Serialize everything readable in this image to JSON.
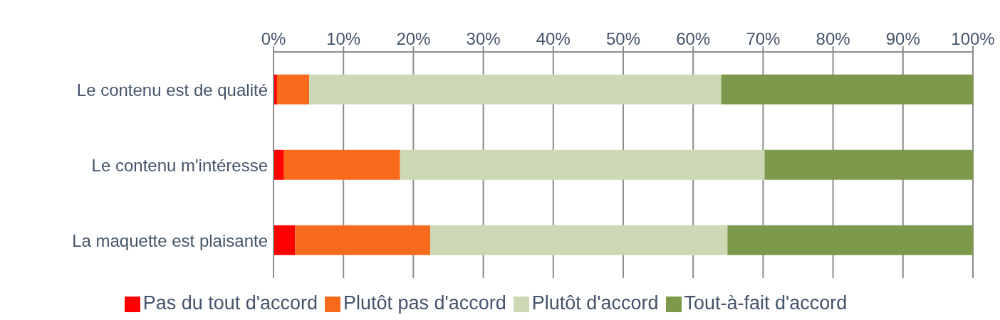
{
  "chart_data": {
    "type": "bar",
    "orientation": "horizontal",
    "stacked": true,
    "categories": [
      "Le contenu est de qualité",
      "Le contenu m'intéresse",
      "La maquette est plaisante"
    ],
    "series": [
      {
        "name": "Pas du tout d'accord",
        "color": "#ff0000",
        "values": [
          0.5,
          1.5,
          3.1
        ]
      },
      {
        "name": "Plutôt pas d'accord",
        "color": "#f96b1c",
        "values": [
          4.6,
          16.6,
          19.3
        ]
      },
      {
        "name": "Plutôt d'accord",
        "color": "#cdd9b4",
        "values": [
          58.9,
          52.1,
          42.5
        ]
      },
      {
        "name": "Tout-à-fait d'accord",
        "color": "#7d9a4c",
        "values": [
          36.0,
          29.8,
          35.1
        ]
      }
    ],
    "xlim": [
      0,
      100
    ],
    "xticks": [
      {
        "value": 0,
        "label": "0%"
      },
      {
        "value": 10,
        "label": "10%"
      },
      {
        "value": 20,
        "label": "20%"
      },
      {
        "value": 30,
        "label": "30%"
      },
      {
        "value": 40,
        "label": "40%"
      },
      {
        "value": 50,
        "label": "50%"
      },
      {
        "value": 60,
        "label": "60%"
      },
      {
        "value": 70,
        "label": "70%"
      },
      {
        "value": 80,
        "label": "80%"
      },
      {
        "value": 90,
        "label": "90%"
      },
      {
        "value": 100,
        "label": "100%"
      }
    ],
    "grid": "x",
    "legend": "bottom"
  }
}
